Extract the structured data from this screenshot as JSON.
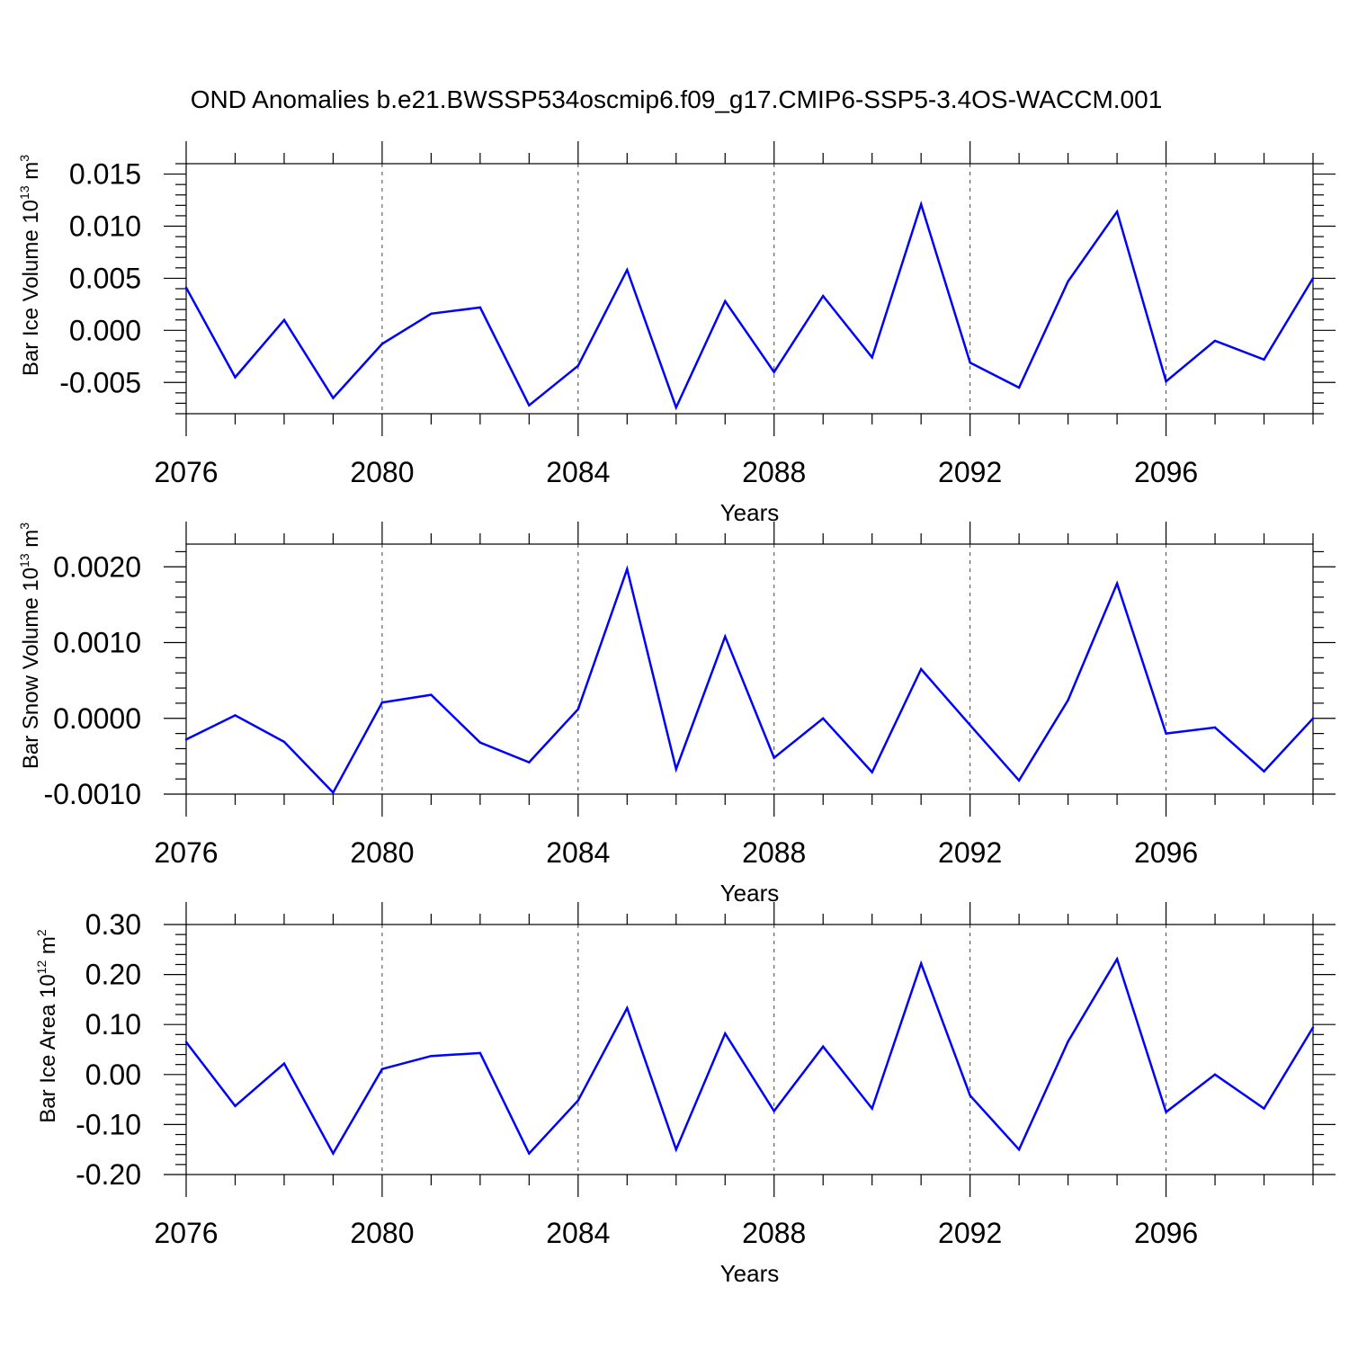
{
  "figure_title": "OND Anomalies b.e21.BWSSP534oscmip6.f09_g17.CMIP6-SSP5-3.4OS-WACCM.001",
  "line_color": "#0000ff",
  "chart_data": [
    {
      "type": "line",
      "ylabel": "Bar Ice Volume 10",
      "ylabel_exponent": "13",
      "ylabel_unit": " m",
      "ylabel_unit_exponent": "3",
      "xlabel": "Years",
      "xlim": [
        2076,
        2099
      ],
      "ylim": [
        -0.008,
        0.016
      ],
      "xticks": [
        2076,
        2080,
        2084,
        2088,
        2092,
        2096
      ],
      "xtick_labels": [
        "2076",
        "2080",
        "2084",
        "2088",
        "2092",
        "2096"
      ],
      "yticks": [
        -0.005,
        0.0,
        0.005,
        0.01,
        0.015
      ],
      "ytick_labels": [
        "-0.005",
        "0.000",
        "0.005",
        "0.010",
        "0.015"
      ],
      "yminor_step": 0.001,
      "grid": "vertical dashed at major x ticks",
      "x": [
        2076,
        2077,
        2078,
        2079,
        2080,
        2081,
        2082,
        2083,
        2084,
        2085,
        2086,
        2087,
        2088,
        2089,
        2090,
        2091,
        2092,
        2093,
        2094,
        2095,
        2096,
        2097,
        2098,
        2099
      ],
      "series": [
        {
          "name": "Bar Ice Volume",
          "values": [
            0.0041,
            -0.0045,
            0.001,
            -0.0065,
            -0.0013,
            0.0016,
            0.0022,
            -0.0072,
            -0.0034,
            0.0058,
            -0.0074,
            0.0028,
            -0.004,
            0.0033,
            -0.0026,
            0.0121,
            -0.0031,
            -0.0055,
            0.0047,
            0.0114,
            -0.0049,
            -0.001,
            -0.0028,
            0.005
          ]
        }
      ]
    },
    {
      "type": "line",
      "ylabel": "Bar Snow Volume 10",
      "ylabel_exponent": "13",
      "ylabel_unit": " m",
      "ylabel_unit_exponent": "3",
      "xlabel": "Years",
      "xlim": [
        2076,
        2099
      ],
      "ylim": [
        -0.001,
        0.0023
      ],
      "xticks": [
        2076,
        2080,
        2084,
        2088,
        2092,
        2096
      ],
      "xtick_labels": [
        "2076",
        "2080",
        "2084",
        "2088",
        "2092",
        "2096"
      ],
      "yticks": [
        -0.001,
        0.0,
        0.001,
        0.002
      ],
      "ytick_labels": [
        "-0.0010",
        "0.0000",
        "0.0010",
        "0.0020"
      ],
      "yminor_step": 0.0002,
      "grid": "vertical dashed at major x ticks",
      "x": [
        2076,
        2077,
        2078,
        2079,
        2080,
        2081,
        2082,
        2083,
        2084,
        2085,
        2086,
        2087,
        2088,
        2089,
        2090,
        2091,
        2092,
        2093,
        2094,
        2095,
        2096,
        2097,
        2098,
        2099
      ],
      "series": [
        {
          "name": "Bar Snow Volume",
          "values": [
            -0.00028,
            4e-05,
            -0.00031,
            -0.00098,
            0.00021,
            0.00031,
            -0.00032,
            -0.00058,
            0.00012,
            0.00197,
            -0.00067,
            0.00108,
            -0.00052,
            0.0,
            -0.00071,
            0.00065,
            -9e-05,
            -0.00082,
            0.00024,
            0.00178,
            -0.0002,
            -0.00012,
            -0.0007,
            0.0
          ]
        }
      ]
    },
    {
      "type": "line",
      "ylabel": "Bar Ice Area 10",
      "ylabel_exponent": "12",
      "ylabel_unit": " m",
      "ylabel_unit_exponent": "2",
      "xlabel": "Years",
      "xlim": [
        2076,
        2099
      ],
      "ylim": [
        -0.2,
        0.3
      ],
      "xticks": [
        2076,
        2080,
        2084,
        2088,
        2092,
        2096
      ],
      "xtick_labels": [
        "2076",
        "2080",
        "2084",
        "2088",
        "2092",
        "2096"
      ],
      "yticks": [
        -0.2,
        -0.1,
        0.0,
        0.1,
        0.2,
        0.3
      ],
      "ytick_labels": [
        "-0.20",
        "-0.10",
        "0.00",
        "0.10",
        "0.20",
        "0.30"
      ],
      "yminor_step": 0.02,
      "grid": "vertical dashed at major x ticks",
      "x": [
        2076,
        2077,
        2078,
        2079,
        2080,
        2081,
        2082,
        2083,
        2084,
        2085,
        2086,
        2087,
        2088,
        2089,
        2090,
        2091,
        2092,
        2093,
        2094,
        2095,
        2096,
        2097,
        2098,
        2099
      ],
      "series": [
        {
          "name": "Bar Ice Area",
          "values": [
            0.065,
            -0.063,
            0.022,
            -0.158,
            0.011,
            0.037,
            0.043,
            -0.158,
            -0.052,
            0.133,
            -0.15,
            0.082,
            -0.073,
            0.056,
            -0.068,
            0.222,
            -0.042,
            -0.15,
            0.066,
            0.231,
            -0.075,
            0.0,
            -0.068,
            0.094
          ]
        }
      ]
    }
  ]
}
